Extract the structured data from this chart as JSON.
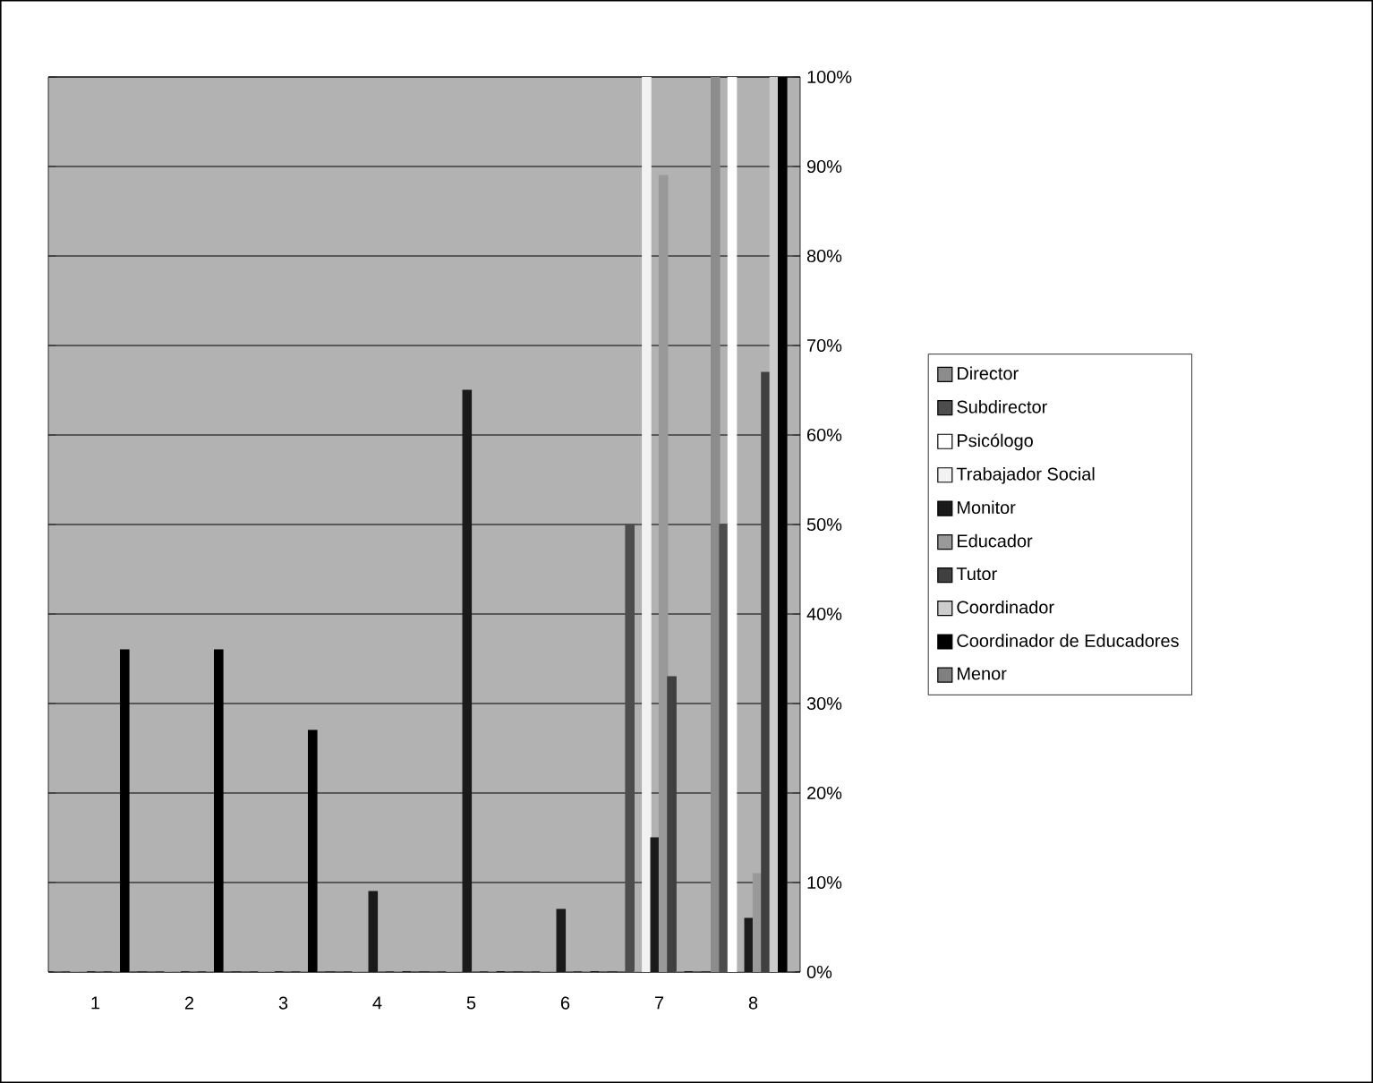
{
  "chart_data": {
    "type": "bar",
    "categories": [
      "1",
      "2",
      "3",
      "4",
      "5",
      "6",
      "7",
      "8"
    ],
    "ylim": [
      0,
      100
    ],
    "yticks": [
      {
        "value": 0,
        "label": "0%"
      },
      {
        "value": 10,
        "label": "10%"
      },
      {
        "value": 20,
        "label": "20%"
      },
      {
        "value": 30,
        "label": "30%"
      },
      {
        "value": 40,
        "label": "40%"
      },
      {
        "value": 50,
        "label": "50%"
      },
      {
        "value": 60,
        "label": "60%"
      },
      {
        "value": 70,
        "label": "70%"
      },
      {
        "value": 80,
        "label": "80%"
      },
      {
        "value": 90,
        "label": "90%"
      },
      {
        "value": 100,
        "label": "100%"
      }
    ],
    "grid": "y",
    "legend": "right",
    "series": [
      {
        "name": "Director",
        "color": "#8c8c8c",
        "values": [
          0,
          0,
          0,
          0,
          0,
          0,
          0,
          100
        ]
      },
      {
        "name": "Subdirector",
        "color": "#4d4d4d",
        "values": [
          0,
          0,
          0,
          0,
          0,
          0,
          50,
          50
        ]
      },
      {
        "name": "Psicólogo",
        "color": "#ffffff",
        "values": [
          0,
          0,
          0,
          0,
          0,
          0,
          0,
          100
        ]
      },
      {
        "name": "Trabajador Social",
        "color": "#f2f2f2",
        "values": [
          0,
          0,
          0,
          0,
          0,
          0,
          100,
          0
        ]
      },
      {
        "name": "Monitor",
        "color": "#1a1a1a",
        "values": [
          0,
          0,
          0,
          9,
          65,
          7,
          15,
          6
        ]
      },
      {
        "name": "Educador",
        "color": "#999999",
        "values": [
          0,
          0,
          0,
          0,
          0,
          0,
          89,
          11
        ]
      },
      {
        "name": "Tutor",
        "color": "#404040",
        "values": [
          0,
          0,
          0,
          0,
          0,
          0,
          33,
          67
        ]
      },
      {
        "name": "Coordinador",
        "color": "#cccccc",
        "values": [
          0,
          0,
          0,
          0,
          0,
          0,
          0,
          100
        ]
      },
      {
        "name": "Coordinador de Educadores",
        "color": "#000000",
        "values": [
          36,
          36,
          27,
          0,
          0,
          0,
          0,
          100
        ]
      },
      {
        "name": "Menor",
        "color": "#808080",
        "values": [
          0,
          0,
          0,
          0,
          0,
          0,
          0,
          0
        ]
      }
    ]
  }
}
